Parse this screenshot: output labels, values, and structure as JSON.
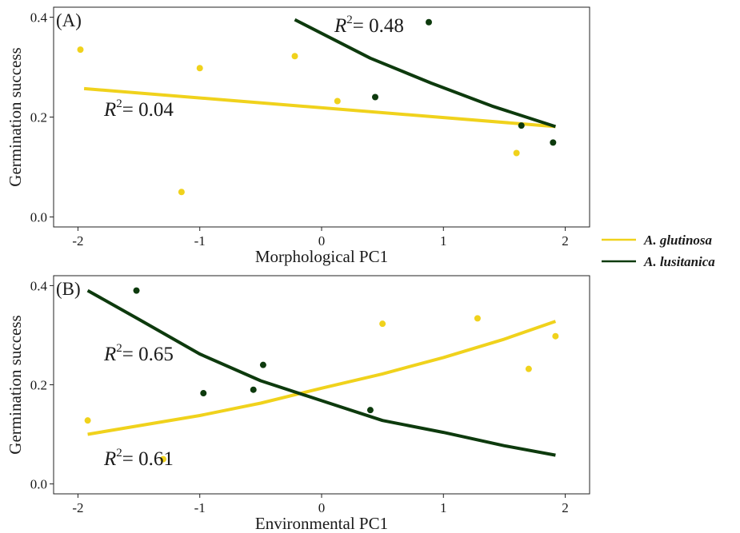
{
  "chart_data": [
    {
      "type": "scatter",
      "panel_label": "(A)",
      "xlabel": "Morphological PC1",
      "ylabel": "Germination success",
      "xlim": [
        -2.2,
        2.2
      ],
      "ylim": [
        -0.02,
        0.42
      ],
      "xticks": [
        -2,
        -1,
        0,
        1,
        2
      ],
      "xtick_labels": [
        "-2",
        "-1",
        "0",
        "1",
        "2"
      ],
      "yticks": [
        0.0,
        0.2,
        0.4
      ],
      "ytick_labels": [
        "0.0",
        "0.2",
        "0.4"
      ],
      "grid": false,
      "series": [
        {
          "name": "A. glutinosa",
          "color": "#F0D21C",
          "points": [
            {
              "x": -1.98,
              "y": 0.335
            },
            {
              "x": -1.15,
              "y": 0.05
            },
            {
              "x": -1.0,
              "y": 0.298
            },
            {
              "x": -0.22,
              "y": 0.322
            },
            {
              "x": 0.13,
              "y": 0.232
            },
            {
              "x": 1.6,
              "y": 0.128
            }
          ],
          "fit": [
            {
              "x": -1.95,
              "y": 0.257
            },
            {
              "x": 1.92,
              "y": 0.181
            }
          ],
          "r2": "0.04"
        },
        {
          "name": "A. lusitanica",
          "color": "#0D3A0D",
          "points": [
            {
              "x": 0.44,
              "y": 0.24
            },
            {
              "x": 0.88,
              "y": 0.39
            },
            {
              "x": 1.64,
              "y": 0.183
            },
            {
              "x": 1.9,
              "y": 0.149
            }
          ],
          "fit": [
            {
              "x": -0.22,
              "y": 0.395
            },
            {
              "x": 0.4,
              "y": 0.318
            },
            {
              "x": 0.9,
              "y": 0.268
            },
            {
              "x": 1.4,
              "y": 0.222
            },
            {
              "x": 1.92,
              "y": 0.181
            }
          ],
          "r2": "0.48"
        }
      ]
    },
    {
      "type": "scatter",
      "panel_label": "(B)",
      "xlabel": "Environmental PC1",
      "ylabel": "Germination success",
      "xlim": [
        -2.2,
        2.2
      ],
      "ylim": [
        -0.02,
        0.42
      ],
      "xticks": [
        -2,
        -1,
        0,
        1,
        2
      ],
      "xtick_labels": [
        "-2",
        "-1",
        "0",
        "1",
        "2"
      ],
      "yticks": [
        0.0,
        0.2,
        0.4
      ],
      "ytick_labels": [
        "0.0",
        "0.2",
        "0.4"
      ],
      "grid": false,
      "series": [
        {
          "name": "A. glutinosa",
          "color": "#F0D21C",
          "points": [
            {
              "x": -1.92,
              "y": 0.128
            },
            {
              "x": -1.3,
              "y": 0.05
            },
            {
              "x": 0.5,
              "y": 0.323
            },
            {
              "x": 1.28,
              "y": 0.334
            },
            {
              "x": 1.7,
              "y": 0.232
            },
            {
              "x": 1.92,
              "y": 0.298
            }
          ],
          "fit": [
            {
              "x": -1.92,
              "y": 0.1
            },
            {
              "x": -1.0,
              "y": 0.138
            },
            {
              "x": -0.5,
              "y": 0.163
            },
            {
              "x": 0.0,
              "y": 0.193
            },
            {
              "x": 0.5,
              "y": 0.222
            },
            {
              "x": 1.0,
              "y": 0.255
            },
            {
              "x": 1.5,
              "y": 0.292
            },
            {
              "x": 1.92,
              "y": 0.328
            }
          ],
          "r2": "0.61"
        },
        {
          "name": "A. lusitanica",
          "color": "#0D3A0D",
          "points": [
            {
              "x": -1.52,
              "y": 0.39
            },
            {
              "x": -0.97,
              "y": 0.183
            },
            {
              "x": -0.56,
              "y": 0.19
            },
            {
              "x": -0.48,
              "y": 0.24
            },
            {
              "x": 0.4,
              "y": 0.149
            }
          ],
          "fit": [
            {
              "x": -1.92,
              "y": 0.39
            },
            {
              "x": -1.5,
              "y": 0.332
            },
            {
              "x": -1.0,
              "y": 0.262
            },
            {
              "x": -0.5,
              "y": 0.208
            },
            {
              "x": 0.0,
              "y": 0.168
            },
            {
              "x": 0.5,
              "y": 0.128
            },
            {
              "x": 1.0,
              "y": 0.104
            },
            {
              "x": 1.5,
              "y": 0.077
            },
            {
              "x": 1.92,
              "y": 0.058
            }
          ],
          "r2": "0.65"
        }
      ]
    }
  ],
  "legend": {
    "placement": "right",
    "items": [
      {
        "label": "A. glutinosa",
        "color": "#F0D21C"
      },
      {
        "label": "A. lusitanica",
        "color": "#0D3A0D"
      }
    ]
  }
}
